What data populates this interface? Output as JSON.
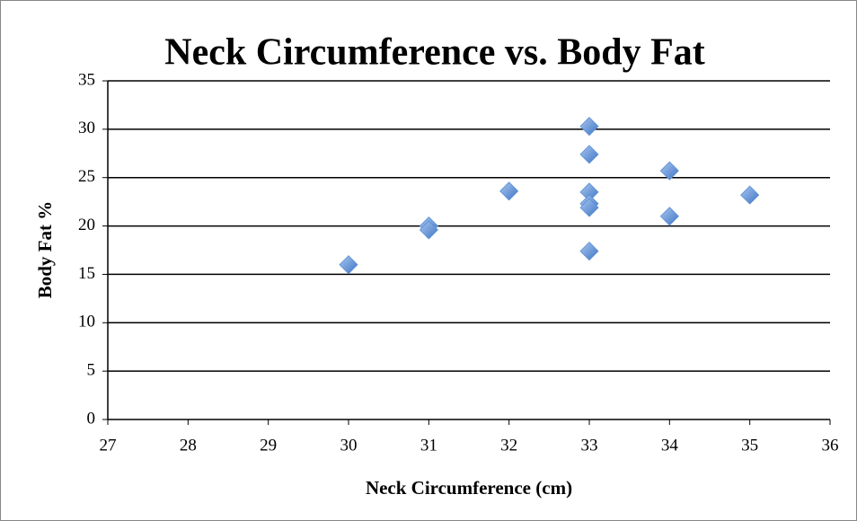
{
  "chart_data": {
    "type": "scatter",
    "title": "Neck Circumference vs. Body Fat",
    "x_label": "Neck Circumference (cm)",
    "y_label": "Body Fat %",
    "x": [
      30,
      31,
      31,
      32,
      33,
      33,
      33,
      33,
      33,
      33,
      34,
      34,
      35
    ],
    "values": [
      16,
      20,
      19.6,
      23.6,
      30.3,
      27.4,
      23.5,
      22.3,
      21.9,
      17.4,
      25.7,
      21,
      23.2
    ],
    "color": "#5b8fd6",
    "xlim": [
      27,
      36
    ],
    "xticks": [
      27,
      28,
      29,
      30,
      31,
      32,
      33,
      34,
      35,
      36
    ],
    "ylim": [
      0,
      35
    ],
    "yticks": [
      0,
      5,
      10,
      15,
      20,
      25,
      30,
      35
    ],
    "grid": true
  }
}
